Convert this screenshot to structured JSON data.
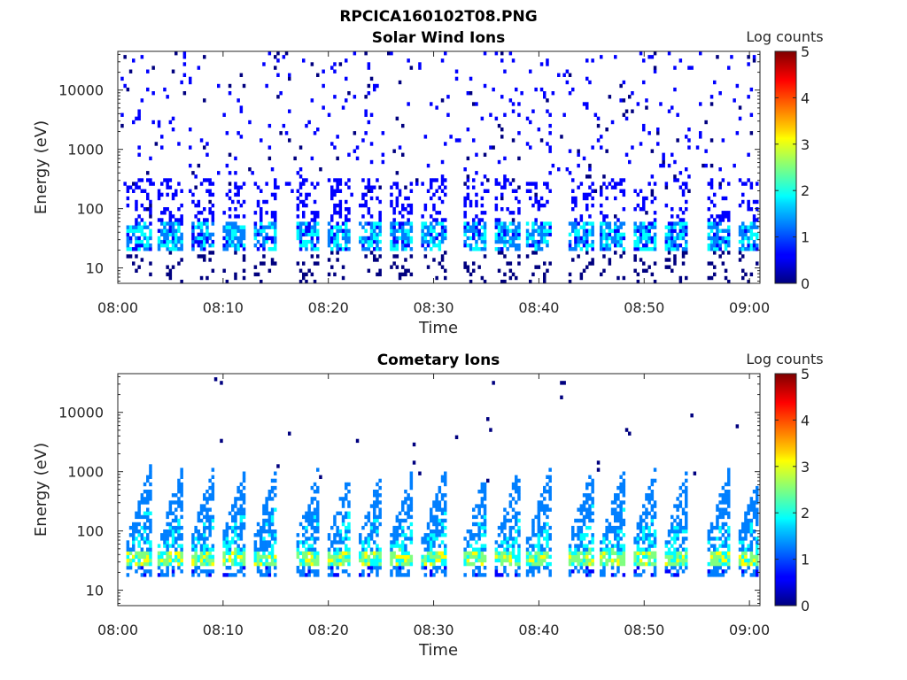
{
  "figure": {
    "title": "RPCICA160102T08.PNG"
  },
  "colormap": [
    "#00007f",
    "#0000ff",
    "#007fff",
    "#00ffff",
    "#7fff7f",
    "#ffff00",
    "#ff7f00",
    "#ff0000",
    "#7f0000"
  ],
  "chart_data": [
    {
      "type": "heatmap",
      "title": "Solar Wind Ions",
      "xlabel": "Time",
      "ylabel": "Energy (eV)",
      "yscale": "log",
      "xlim": [
        "08:00",
        "09:01"
      ],
      "ylim": [
        5.5,
        45000
      ],
      "xticks": [
        "08:00",
        "08:10",
        "08:20",
        "08:30",
        "08:40",
        "08:50",
        "09:00"
      ],
      "yticks": [
        "10",
        "100",
        "1000",
        "10000"
      ],
      "colorbar": {
        "label": "Log counts",
        "range": [
          0,
          5
        ],
        "ticks": [
          "0",
          "1",
          "2",
          "3",
          "4",
          "5"
        ]
      },
      "sweep_times": [
        "08:02",
        "08:05",
        "08:08",
        "08:11",
        "08:14",
        "08:18",
        "08:21",
        "08:24",
        "08:27",
        "08:30",
        "08:34",
        "08:37",
        "08:40",
        "08:44",
        "08:47",
        "08:50",
        "08:53",
        "08:57",
        "09:00"
      ],
      "peak_energy_range_eV": [
        20,
        60
      ],
      "peak_log_counts": 2
    },
    {
      "type": "heatmap",
      "title": "Cometary Ions",
      "xlabel": "Time",
      "ylabel": "Energy (eV)",
      "yscale": "log",
      "xlim": [
        "08:00",
        "09:01"
      ],
      "ylim": [
        5.5,
        45000
      ],
      "xticks": [
        "08:00",
        "08:10",
        "08:20",
        "08:30",
        "08:40",
        "08:50",
        "09:00"
      ],
      "yticks": [
        "10",
        "100",
        "1000",
        "10000"
      ],
      "colorbar": {
        "label": "Log counts",
        "range": [
          0,
          5
        ],
        "ticks": [
          "0",
          "1",
          "2",
          "3",
          "4",
          "5"
        ]
      },
      "sweep_times": [
        "08:02",
        "08:05",
        "08:08",
        "08:11",
        "08:14",
        "08:18",
        "08:21",
        "08:24",
        "08:27",
        "08:30",
        "08:34",
        "08:37",
        "08:40",
        "08:44",
        "08:47",
        "08:50",
        "08:53",
        "08:57",
        "09:00"
      ],
      "peak_energy_range_eV": [
        25,
        45
      ],
      "peak_log_counts": 3
    }
  ]
}
